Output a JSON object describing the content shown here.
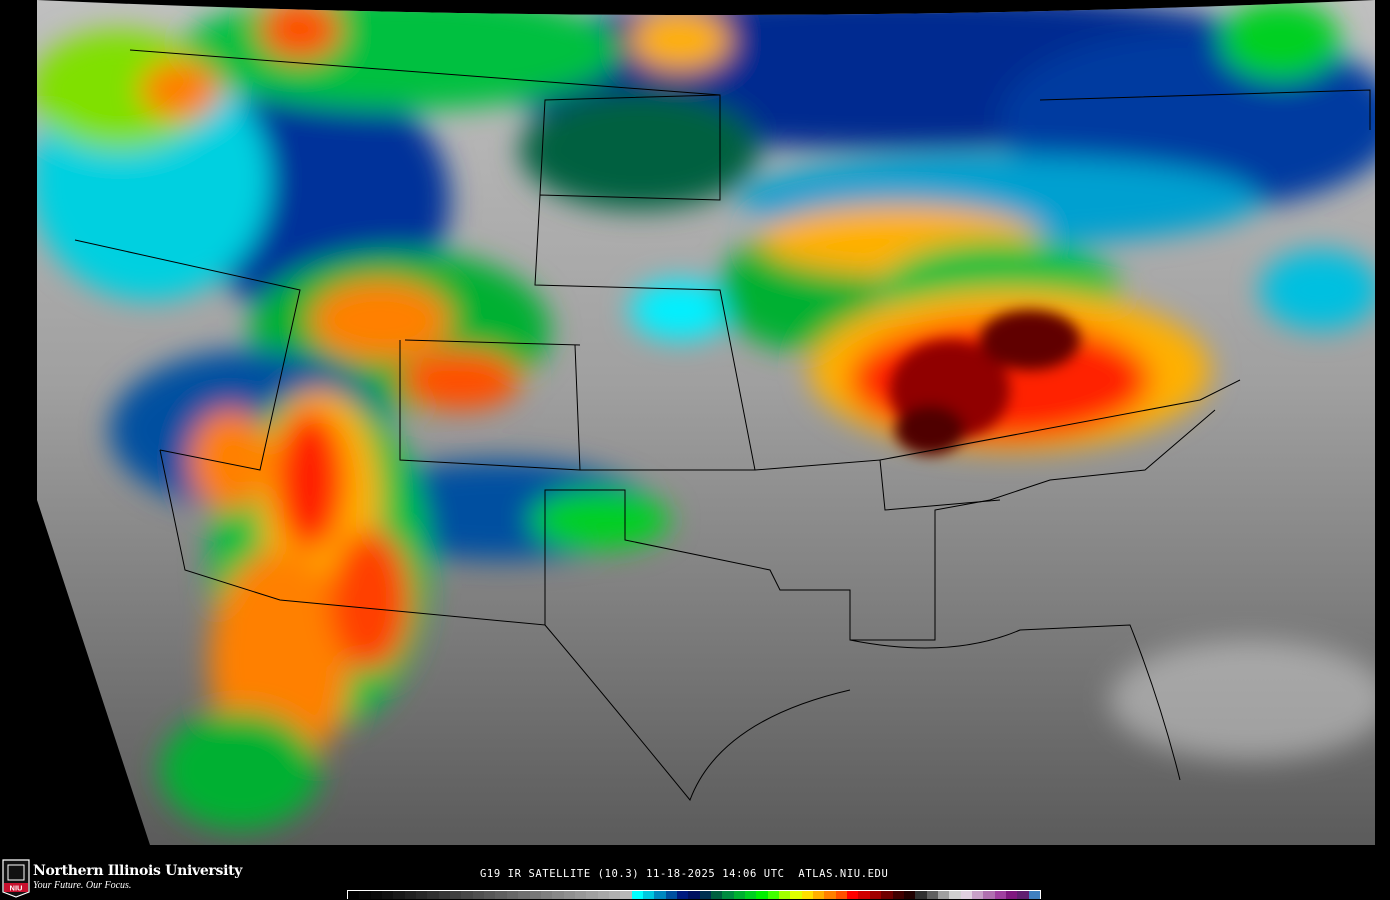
{
  "caption": {
    "satellite": "G19 IR SATELLITE",
    "band": "(10.3)",
    "date": "11-18-2025",
    "time": "14:06 UTC",
    "site": "ATLAS.NIU.EDU"
  },
  "logo": {
    "university": "Northern Illinois University",
    "tagline": "Your Future. Our Focus.",
    "badge": "NIU"
  },
  "colorbar": {
    "colors": [
      "#000000",
      "#050505",
      "#0a0a0a",
      "#101010",
      "#181818",
      "#202020",
      "#282828",
      "#303030",
      "#383838",
      "#404040",
      "#484848",
      "#505050",
      "#585858",
      "#606060",
      "#686868",
      "#707070",
      "#787878",
      "#808080",
      "#888888",
      "#909090",
      "#989898",
      "#a0a0a0",
      "#a8a8a8",
      "#b0b0b0",
      "#b8b8b8",
      "#00ffff",
      "#00c8e0",
      "#0088c0",
      "#0050a0",
      "#001a80",
      "#001060",
      "#003050",
      "#006040",
      "#008c40",
      "#00b030",
      "#00d020",
      "#00f000",
      "#40ff00",
      "#a0ff00",
      "#e0ff00",
      "#ffe000",
      "#ffb000",
      "#ff8000",
      "#ff5000",
      "#ff0000",
      "#d00000",
      "#a00000",
      "#700000",
      "#400000",
      "#200000",
      "#303030",
      "#606060",
      "#a0a0a0",
      "#d0d0d0",
      "#e0d0e0",
      "#c8a0c8",
      "#b070b0",
      "#a040a0",
      "#801880",
      "#602070",
      "#4080c0"
    ]
  }
}
